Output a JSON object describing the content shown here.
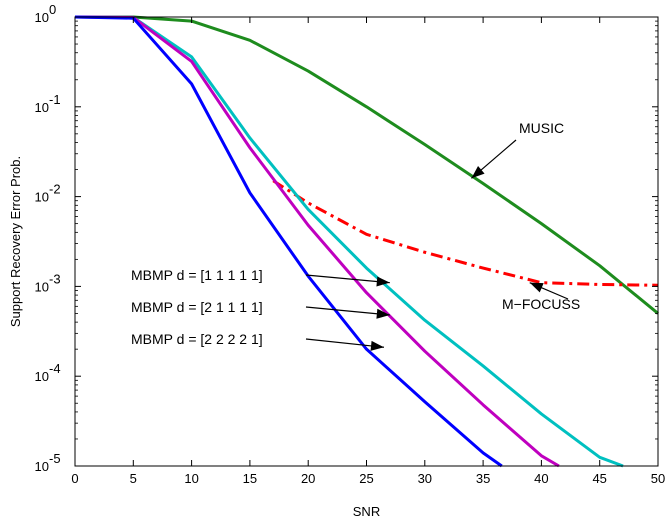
{
  "chart_data": {
    "type": "line",
    "title": "",
    "xlabel": "SNR",
    "ylabel": "Support Recovery Error Prob.",
    "xlim": [
      0,
      50
    ],
    "ylim": [
      1e-05,
      1
    ],
    "yscale": "log",
    "grid": false,
    "x_ticks": [
      "0",
      "5",
      "10",
      "15",
      "20",
      "25",
      "30",
      "35",
      "40",
      "45",
      "50"
    ],
    "y_ticks": [
      {
        "base": "10",
        "exp": "0"
      },
      {
        "base": "10",
        "exp": "-1"
      },
      {
        "base": "10",
        "exp": "-2"
      },
      {
        "base": "10",
        "exp": "-3"
      },
      {
        "base": "10",
        "exp": "-4"
      },
      {
        "base": "10",
        "exp": "-5"
      }
    ],
    "series": [
      {
        "name": "MUSIC",
        "color": "#1e8c1e",
        "dash": "solid",
        "x": [
          0,
          5,
          10,
          15,
          20,
          25,
          30,
          35,
          40,
          45,
          50
        ],
        "y": [
          1.0,
          1.0,
          0.9,
          0.55,
          0.25,
          0.1,
          0.038,
          0.014,
          0.005,
          0.0017,
          0.0005
        ]
      },
      {
        "name": "M-FOCUSS",
        "color": "#ff0000",
        "dash": "dashdot",
        "x": [
          17,
          20,
          25,
          30,
          35,
          40,
          45,
          50
        ],
        "y": [
          0.015,
          0.0085,
          0.0038,
          0.0024,
          0.0016,
          0.0011,
          0.00105,
          0.00103
        ]
      },
      {
        "name": "MBMP d = [1 1 1 1 1]",
        "color": "#00c0c0",
        "dash": "solid",
        "x": [
          0,
          5,
          10,
          15,
          20,
          25,
          30,
          35,
          40,
          45,
          47
        ],
        "y": [
          1.0,
          0.99,
          0.36,
          0.045,
          0.0072,
          0.0016,
          0.00042,
          0.00013,
          3.8e-05,
          1.25e-05,
          1e-05
        ]
      },
      {
        "name": "MBMP d = [2 1 1 1 1]",
        "color": "#bf00bf",
        "dash": "solid",
        "x": [
          0,
          5,
          10,
          15,
          20,
          25,
          30,
          35,
          40,
          41.5
        ],
        "y": [
          1.0,
          0.99,
          0.32,
          0.035,
          0.0048,
          0.00085,
          0.00019,
          4.8e-05,
          1.3e-05,
          1e-05
        ]
      },
      {
        "name": "MBMP d = [2 2 2 2 1]",
        "color": "#0000ff",
        "dash": "solid",
        "x": [
          0,
          5,
          10,
          15,
          20,
          25,
          30,
          35,
          36.6
        ],
        "y": [
          1.0,
          0.97,
          0.18,
          0.011,
          0.0013,
          0.0002,
          5.2e-05,
          1.4e-05,
          1e-05
        ]
      }
    ],
    "annotations": [
      {
        "text": "MUSIC",
        "series": "MUSIC",
        "arrow_to": [
          34,
          0.016
        ]
      },
      {
        "text": "M−FOCUSS",
        "series": "M-FOCUSS",
        "arrow_to": [
          39,
          0.0011
        ]
      },
      {
        "text": "MBMP d = [1 1 1 1 1]",
        "series": "MBMP d = [1 1 1 1 1]",
        "arrow_to": [
          27,
          0.0011
        ]
      },
      {
        "text": "MBMP d = [2 1 1 1 1]",
        "series": "MBMP d = [2 1 1 1 1]",
        "arrow_to": [
          27,
          0.00048
        ]
      },
      {
        "text": "MBMP d = [2 2 2 2 1]",
        "series": "MBMP d = [2 2 2 2 1]",
        "arrow_to": [
          26.5,
          0.00021
        ]
      }
    ]
  }
}
